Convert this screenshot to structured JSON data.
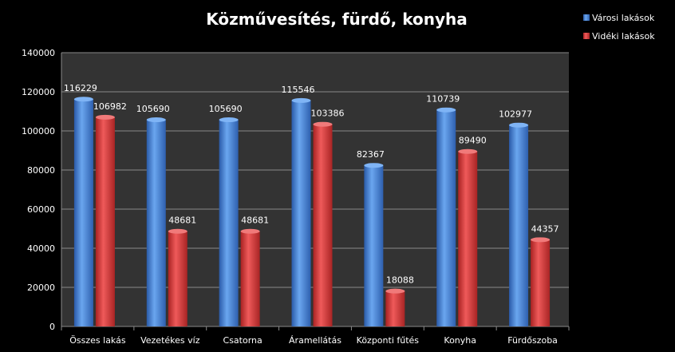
{
  "chart_data": {
    "type": "bar",
    "title": "Közművesítés, fürdő, konyha",
    "xlabel": "",
    "ylabel": "",
    "categories": [
      "Összes lakás",
      "Vezetékes víz",
      "Csatorna",
      "Áramellátás",
      "Központi fűtés",
      "Konyha",
      "Fürdőszoba"
    ],
    "series": [
      {
        "name": "Városi lakások",
        "color": "#4a86d8",
        "values": [
          116229,
          105690,
          105690,
          115546,
          82367,
          110739,
          102977
        ]
      },
      {
        "name": "Vidéki lakások",
        "color": "#d83a3a",
        "values": [
          106982,
          48681,
          48681,
          103386,
          18088,
          89490,
          44357
        ]
      }
    ],
    "ylim": [
      0,
      140000
    ],
    "yticks": [
      0,
      20000,
      40000,
      60000,
      80000,
      100000,
      120000,
      140000
    ],
    "grid": true,
    "legend": "top-right",
    "plot_background": "#333333",
    "data_labels": true
  }
}
